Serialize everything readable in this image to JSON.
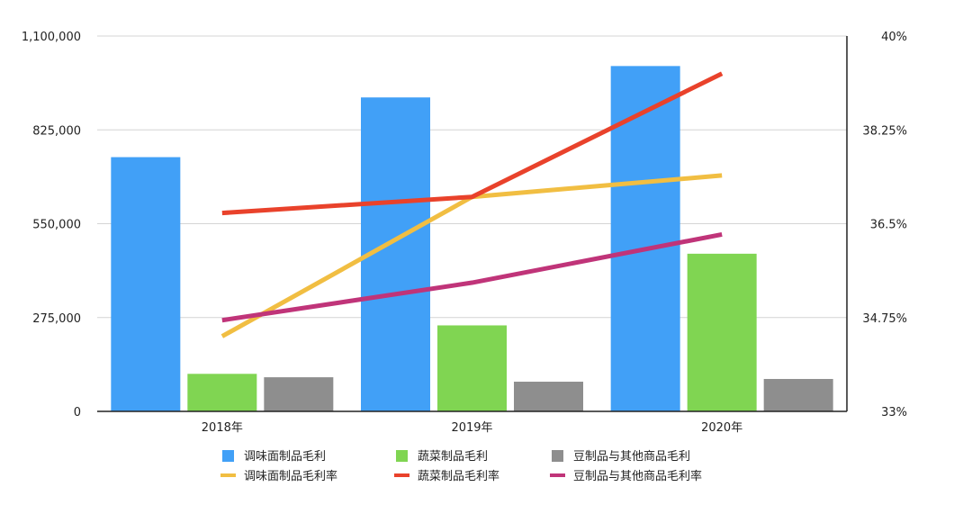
{
  "chart_data": {
    "type": "bar",
    "categories": [
      "2018年",
      "2019年",
      "2020年"
    ],
    "y_left": {
      "ylim": [
        0,
        1100000
      ],
      "ticks": [
        0,
        275000,
        550000,
        825000,
        1100000
      ],
      "tick_labels": [
        "0",
        "275,000",
        "550,000",
        "825,000",
        "1,100,000"
      ]
    },
    "y_right": {
      "ylim": [
        33,
        40
      ],
      "ticks": [
        33,
        34.75,
        36.5,
        38.25,
        40
      ],
      "tick_labels": [
        "33%",
        "34.75%",
        "36.5%",
        "38.25%",
        "40%"
      ]
    },
    "grid": true,
    "legend_position": "bottom",
    "bar_series": [
      {
        "name": "调味面制品毛利",
        "color": "#41a0f7",
        "values": [
          745000,
          920000,
          1012000
        ]
      },
      {
        "name": "蔬菜制品毛利",
        "color": "#80d552",
        "values": [
          110000,
          252000,
          462000
        ]
      },
      {
        "name": "豆制品与其他商品毛利",
        "color": "#8e8e8e",
        "values": [
          100000,
          87000,
          95000
        ]
      }
    ],
    "line_series": [
      {
        "name": "调味面制品毛利率",
        "color": "#f1be42",
        "values": [
          34.4,
          37.0,
          37.4
        ]
      },
      {
        "name": "蔬菜制品毛利率",
        "color": "#e9422b",
        "values": [
          36.7,
          37.0,
          39.3
        ]
      },
      {
        "name": "豆制品与其他商品毛利率",
        "color": "#c03479",
        "values": [
          34.7,
          35.4,
          36.3
        ]
      }
    ]
  }
}
